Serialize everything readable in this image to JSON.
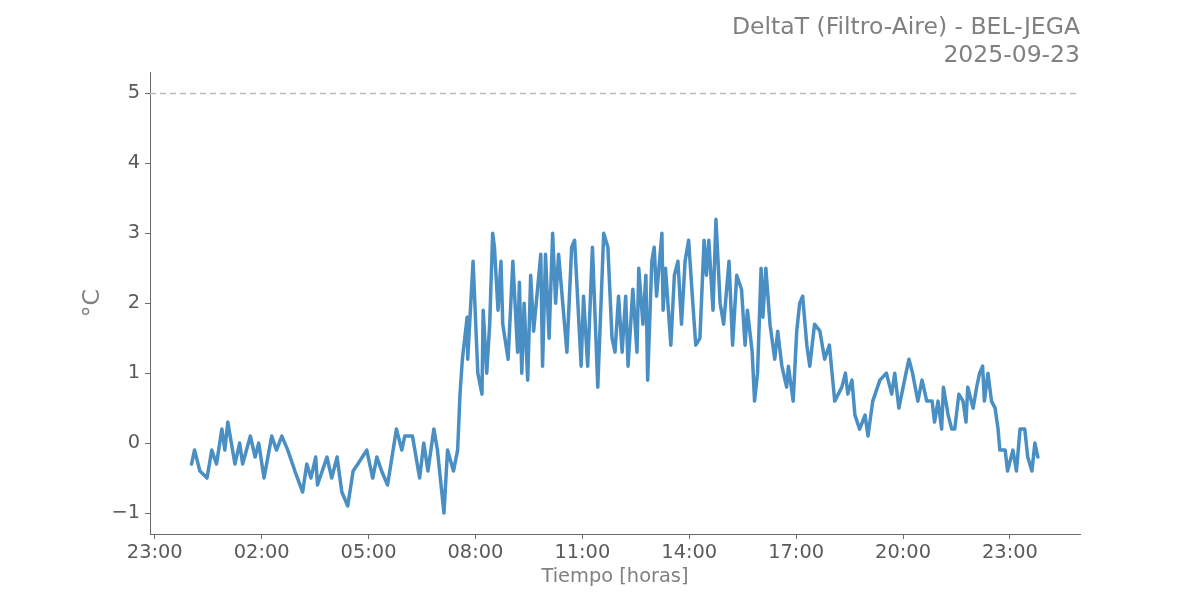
{
  "chart_data": {
    "type": "line",
    "title": "DeltaT (Filtro-Aire) - BEL-JEGA",
    "subtitle": "2025-09-23",
    "xlabel": "Tiempo [horas]",
    "ylabel": "°C",
    "x": [
      "2025-09-23T00:02",
      "2025-09-23T00:07",
      "2025-09-23T00:16",
      "2025-09-23T00:28",
      "2025-09-23T00:36",
      "2025-09-23T00:44",
      "2025-09-23T00:53",
      "2025-09-23T00:58",
      "2025-09-23T01:03",
      "2025-09-23T01:15",
      "2025-09-23T01:23",
      "2025-09-23T01:28",
      "2025-09-23T01:41",
      "2025-09-23T01:49",
      "2025-09-23T01:55",
      "2025-09-23T02:04",
      "2025-09-23T02:17",
      "2025-09-23T02:25",
      "2025-09-23T02:34",
      "2025-09-23T02:44",
      "2025-09-23T02:56",
      "2025-09-23T03:09",
      "2025-09-23T03:16",
      "2025-09-23T03:23",
      "2025-09-23T03:31",
      "2025-09-23T03:34",
      "2025-09-23T03:50",
      "2025-09-23T03:58",
      "2025-09-23T04:07",
      "2025-09-23T04:15",
      "2025-09-23T04:25",
      "2025-09-23T04:34",
      "2025-09-23T04:42",
      "2025-09-23T04:57",
      "2025-09-23T05:07",
      "2025-09-23T05:14",
      "2025-09-23T05:22",
      "2025-09-23T05:32",
      "2025-09-23T05:47",
      "2025-09-23T05:56",
      "2025-09-23T06:01",
      "2025-09-23T06:14",
      "2025-09-23T06:26",
      "2025-09-23T06:33",
      "2025-09-23T06:40",
      "2025-09-23T06:50",
      "2025-09-23T06:56",
      "2025-09-23T07:07",
      "2025-09-23T07:13",
      "2025-09-23T07:23",
      "2025-09-23T07:30",
      "2025-09-23T07:34",
      "2025-09-23T07:38",
      "2025-09-23T07:46",
      "2025-09-23T07:47",
      "2025-09-23T07:56",
      "2025-09-23T08:04",
      "2025-09-23T08:11",
      "2025-09-23T08:13",
      "2025-09-23T08:19",
      "2025-09-23T08:24",
      "2025-09-23T08:29",
      "2025-09-23T08:32",
      "2025-09-23T08:38",
      "2025-09-23T08:43",
      "2025-09-23T08:46",
      "2025-09-23T08:55",
      "2025-09-23T09:03",
      "2025-09-23T09:11",
      "2025-09-23T09:14",
      "2025-09-23T09:18",
      "2025-09-23T09:22",
      "2025-09-23T09:28",
      "2025-09-23T09:33",
      "2025-09-23T09:38",
      "2025-09-23T09:50",
      "2025-09-23T09:53",
      "2025-09-23T09:58",
      "2025-09-23T10:04",
      "2025-09-23T10:10",
      "2025-09-23T10:15",
      "2025-09-23T10:20",
      "2025-09-23T10:34",
      "2025-09-23T10:42",
      "2025-09-23T10:47",
      "2025-09-23T10:58",
      "2025-09-23T11:02",
      "2025-09-23T11:09",
      "2025-09-23T11:17",
      "2025-09-23T11:26",
      "2025-09-23T11:36",
      "2025-09-23T11:43",
      "2025-09-23T11:50",
      "2025-09-23T11:55",
      "2025-09-23T12:01",
      "2025-09-23T12:07",
      "2025-09-23T12:13",
      "2025-09-23T12:17",
      "2025-09-23T12:25",
      "2025-09-23T12:32",
      "2025-09-23T12:35",
      "2025-09-23T12:42",
      "2025-09-23T12:47",
      "2025-09-23T12:50",
      "2025-09-23T12:57",
      "2025-09-23T13:01",
      "2025-09-23T13:05",
      "2025-09-23T13:14",
      "2025-09-23T13:16",
      "2025-09-23T13:20",
      "2025-09-23T13:29",
      "2025-09-23T13:35",
      "2025-09-23T13:41",
      "2025-09-23T13:47",
      "2025-09-23T13:53",
      "2025-09-23T13:59",
      "2025-09-23T14:06",
      "2025-09-23T14:11",
      "2025-09-23T14:18",
      "2025-09-23T14:25",
      "2025-09-23T14:29",
      "2025-09-23T14:33",
      "2025-09-23T14:40",
      "2025-09-23T14:45",
      "2025-09-23T14:52",
      "2025-09-23T14:58",
      "2025-09-23T15:07",
      "2025-09-23T15:13",
      "2025-09-23T15:20",
      "2025-09-23T15:28",
      "2025-09-23T15:34",
      "2025-09-23T15:38",
      "2025-09-23T15:46",
      "2025-09-23T15:50",
      "2025-09-23T15:55",
      "2025-09-23T16:01",
      "2025-09-23T16:04",
      "2025-09-23T16:09",
      "2025-09-23T16:16",
      "2025-09-23T16:24",
      "2025-09-23T16:29",
      "2025-09-23T16:36",
      "2025-09-23T16:44",
      "2025-09-23T16:47",
      "2025-09-23T16:55",
      "2025-09-23T17:01",
      "2025-09-23T17:06",
      "2025-09-23T17:11",
      "2025-09-23T17:18",
      "2025-09-23T17:23",
      "2025-09-23T17:31",
      "2025-09-23T17:40",
      "2025-09-23T17:48",
      "2025-09-23T17:56",
      "2025-09-23T18:05",
      "2025-09-23T18:17",
      "2025-09-23T18:23",
      "2025-09-23T18:27",
      "2025-09-23T18:34",
      "2025-09-23T18:39",
      "2025-09-23T18:47",
      "2025-09-23T18:56",
      "2025-09-23T19:01",
      "2025-09-23T19:09",
      "2025-09-23T19:21",
      "2025-09-23T19:32",
      "2025-09-23T19:41",
      "2025-09-23T19:46",
      "2025-09-23T19:53",
      "2025-09-23T20:05",
      "2025-09-23T20:10",
      "2025-09-23T20:16",
      "2025-09-23T20:25",
      "2025-09-23T20:32",
      "2025-09-23T20:40",
      "2025-09-23T20:49",
      "2025-09-23T20:53",
      "2025-09-23T20:59",
      "2025-09-23T21:05",
      "2025-09-23T21:08",
      "2025-09-23T21:16",
      "2025-09-23T21:22",
      "2025-09-23T21:27",
      "2025-09-23T21:34",
      "2025-09-23T21:41",
      "2025-09-23T21:46",
      "2025-09-23T21:49",
      "2025-09-23T21:58",
      "2025-09-23T22:04",
      "2025-09-23T22:09",
      "2025-09-23T22:14",
      "2025-09-23T22:17",
      "2025-09-23T22:23",
      "2025-09-23T22:29",
      "2025-09-23T22:35",
      "2025-09-23T22:40",
      "2025-09-23T22:43",
      "2025-09-23T22:52",
      "2025-09-23T22:56",
      "2025-09-23T23:05",
      "2025-09-23T23:11",
      "2025-09-23T23:17",
      "2025-09-23T23:25",
      "2025-09-23T23:30",
      "2025-09-23T23:37",
      "2025-09-23T23:42",
      "2025-09-23T23:47"
    ],
    "values": [
      -0.3,
      -0.1,
      -0.4,
      -0.5,
      -0.1,
      -0.3,
      0.2,
      -0.1,
      0.3,
      -0.3,
      0.0,
      -0.3,
      0.1,
      -0.2,
      0.0,
      -0.5,
      0.1,
      -0.1,
      0.1,
      -0.1,
      -0.4,
      -0.7,
      -0.3,
      -0.5,
      -0.2,
      -0.6,
      -0.2,
      -0.5,
      -0.2,
      -0.7,
      -0.9,
      -0.4,
      -0.3,
      -0.1,
      -0.5,
      -0.2,
      -0.4,
      -0.6,
      0.2,
      -0.1,
      0.1,
      0.1,
      -0.5,
      0.0,
      -0.4,
      0.2,
      -0.1,
      -1.0,
      -0.1,
      -0.4,
      -0.1,
      0.7,
      1.2,
      1.8,
      1.2,
      2.6,
      1.0,
      0.7,
      1.9,
      1.0,
      1.7,
      3.0,
      2.8,
      1.9,
      2.6,
      1.7,
      1.2,
      2.6,
      1.3,
      2.3,
      1.0,
      2.0,
      0.9,
      2.4,
      1.6,
      2.7,
      1.1,
      2.7,
      1.5,
      3.0,
      2.0,
      2.7,
      1.3,
      2.8,
      2.9,
      1.1,
      2.1,
      1.1,
      2.8,
      0.8,
      3.0,
      2.8,
      1.5,
      1.3,
      2.1,
      1.3,
      2.1,
      1.1,
      2.2,
      1.3,
      2.5,
      1.7,
      2.4,
      0.9,
      2.6,
      2.8,
      2.1,
      3.0,
      1.9,
      2.5,
      1.4,
      2.4,
      2.6,
      1.7,
      2.6,
      2.9,
      2.0,
      1.4,
      1.5,
      2.9,
      2.4,
      2.9,
      1.9,
      3.2,
      2.0,
      1.7,
      2.6,
      1.4,
      2.4,
      2.2,
      1.4,
      1.9,
      1.3,
      0.6,
      1.0,
      2.5,
      1.8,
      2.5,
      1.7,
      1.2,
      1.6,
      1.1,
      0.8,
      1.1,
      0.6,
      1.6,
      2.0,
      2.1,
      1.4,
      1.1,
      1.7,
      1.6,
      1.2,
      1.4,
      0.6,
      0.8,
      1.0,
      0.7,
      0.9,
      0.4,
      0.2,
      0.4,
      0.1,
      0.6,
      0.9,
      1.0,
      0.7,
      1.0,
      0.5,
      1.0,
      1.2,
      1.0,
      0.6,
      0.9,
      0.6,
      0.6,
      0.3,
      0.6,
      0.2,
      0.8,
      0.4,
      0.2,
      0.2,
      0.7,
      0.6,
      0.3,
      0.8,
      0.5,
      0.8,
      1.0,
      1.1,
      0.6,
      1.0,
      0.6,
      0.5,
      0.2,
      -0.1,
      -0.1,
      -0.4,
      -0.1,
      -0.4,
      0.2,
      0.2,
      -0.2,
      -0.4,
      0.0,
      -0.2
    ],
    "color": "#4a8fc4",
    "xlim": [
      "2025-09-22T22:52",
      "2025-09-24T00:58"
    ],
    "xticks": [
      {
        "value": "2025-09-22T23:00",
        "label": "23:00"
      },
      {
        "value": "2025-09-23T02:00",
        "label": "02:00"
      },
      {
        "value": "2025-09-23T05:00",
        "label": "05:00"
      },
      {
        "value": "2025-09-23T08:00",
        "label": "08:00"
      },
      {
        "value": "2025-09-23T11:00",
        "label": "11:00"
      },
      {
        "value": "2025-09-23T14:00",
        "label": "14:00"
      },
      {
        "value": "2025-09-23T17:00",
        "label": "17:00"
      },
      {
        "value": "2025-09-23T20:00",
        "label": "20:00"
      },
      {
        "value": "2025-09-23T23:00",
        "label": "23:00"
      }
    ],
    "ylim": [
      -1.3,
      5.3
    ],
    "yticks": [
      {
        "value": -1,
        "label": "−1"
      },
      0,
      1,
      2,
      3,
      4,
      5
    ],
    "ref_lines": [
      {
        "axis": "y",
        "value": 5,
        "color": "#bbbbbb",
        "line_style": "dashed"
      }
    ]
  }
}
